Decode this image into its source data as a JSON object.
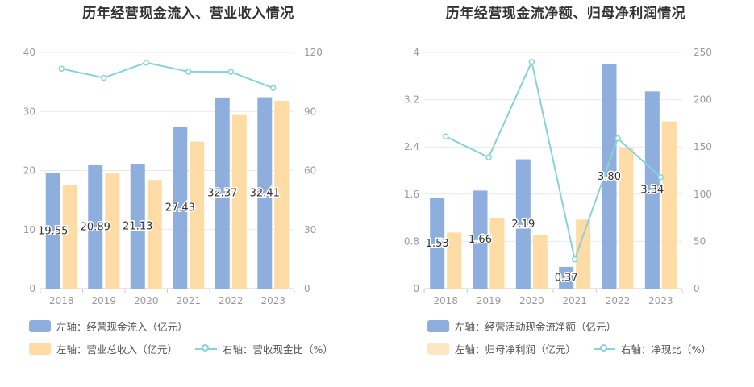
{
  "colors": {
    "bar_primary": "#8eaedd",
    "bar_secondary": "#ffdca5",
    "line": "#88d3d6",
    "axis_text": "#999999",
    "grid": "#e6e9f0"
  },
  "chart_data": [
    {
      "type": "bar",
      "title": "历年经营现金流入、营业收入情况",
      "categories": [
        "2018",
        "2019",
        "2020",
        "2021",
        "2022",
        "2023"
      ],
      "left_axis": {
        "ylim": [
          0,
          40
        ],
        "ticks": [
          "0",
          "10",
          "20",
          "30",
          "40"
        ]
      },
      "right_axis": {
        "ylim": [
          0,
          120
        ],
        "ticks": [
          "0",
          "30",
          "60",
          "90",
          "120"
        ]
      },
      "series": [
        {
          "name": "左轴：经营现金流入（亿元）",
          "axis": "left",
          "kind": "bar",
          "values": [
            19.55,
            20.89,
            21.13,
            27.43,
            32.37,
            32.41
          ],
          "labels": [
            "19.55",
            "20.89",
            "21.13",
            "27.43",
            "32.37",
            "32.41"
          ]
        },
        {
          "name": "左轴：营业总收入（亿元）",
          "axis": "left",
          "kind": "bar",
          "values": [
            17.5,
            19.5,
            18.4,
            24.9,
            29.4,
            31.8
          ]
        },
        {
          "name": "右轴：营收现金比（%）",
          "axis": "right",
          "kind": "line",
          "values": [
            111.7,
            107.1,
            114.8,
            110.2,
            110.1,
            101.9
          ]
        }
      ],
      "grid": true,
      "legend": "bottom"
    },
    {
      "type": "bar",
      "title": "历年经营现金流净额、归母净利润情况",
      "categories": [
        "2018",
        "2019",
        "2020",
        "2021",
        "2022",
        "2023"
      ],
      "left_axis": {
        "ylim": [
          0,
          4
        ],
        "ticks": [
          "0",
          "0.8",
          "1.6",
          "2.4",
          "3.2",
          "4"
        ]
      },
      "right_axis": {
        "ylim": [
          0,
          250
        ],
        "ticks": [
          "0",
          "50",
          "100",
          "150",
          "200",
          "250"
        ]
      },
      "series": [
        {
          "name": "左轴：经营活动现金流净额（亿元）",
          "axis": "left",
          "kind": "bar",
          "values": [
            1.53,
            1.66,
            2.19,
            0.37,
            3.8,
            3.34
          ],
          "labels": [
            "1.53",
            "1.66",
            "2.19",
            "0.37",
            "3.80",
            "3.34"
          ]
        },
        {
          "name": "左轴：归母净利润（亿元）",
          "axis": "left",
          "kind": "bar",
          "values": [
            0.95,
            1.19,
            0.91,
            1.17,
            2.39,
            2.83
          ]
        },
        {
          "name": "右轴：净现比（%）",
          "axis": "right",
          "kind": "line",
          "values": [
            161,
            139,
            240,
            31,
            159,
            118
          ]
        }
      ],
      "grid": true,
      "legend": "bottom"
    }
  ]
}
